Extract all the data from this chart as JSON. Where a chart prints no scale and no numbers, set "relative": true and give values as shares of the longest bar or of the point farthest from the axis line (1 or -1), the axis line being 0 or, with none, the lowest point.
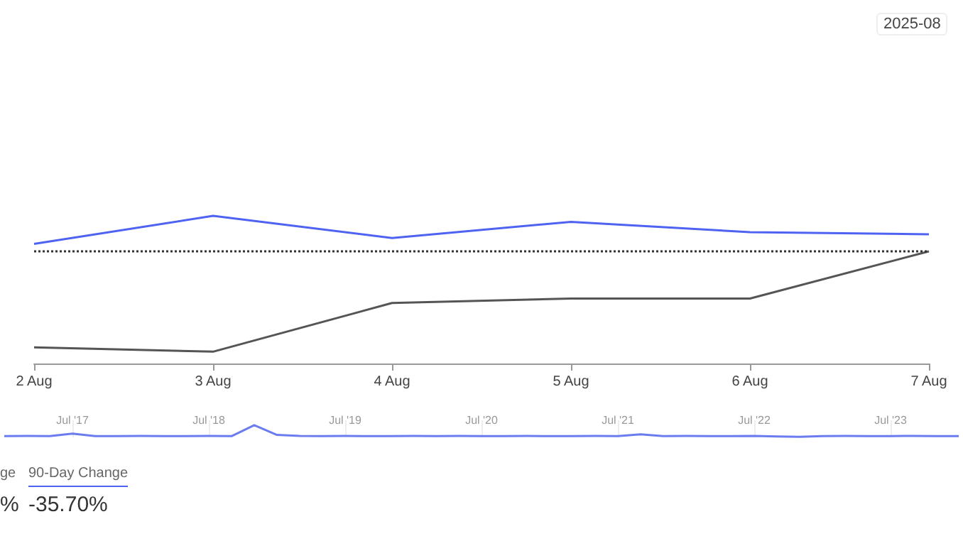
{
  "chart_data": [
    {
      "type": "line",
      "relative": true,
      "categories": [
        "2 Aug",
        "3 Aug",
        "4 Aug",
        "5 Aug",
        "6 Aug",
        "7 Aug"
      ],
      "series": [
        {
          "color": "#4f63f3",
          "values": [
            0.81,
            1.0,
            0.85,
            0.96,
            0.89,
            0.875
          ]
        },
        {
          "color": "#555555",
          "values": [
            0.11,
            0.08,
            0.41,
            0.44,
            0.44,
            0.76
          ]
        }
      ],
      "ref_lines": [
        {
          "axis": "y",
          "value": 0.76,
          "color": "#333333",
          "line_style": "dotted"
        }
      ],
      "marker": "none",
      "annotations": [
        "2025-08",
        "ge",
        "%",
        "90-Day Change",
        "-35.70%"
      ]
    },
    {
      "type": "line",
      "relative": true,
      "tick_labels": "x",
      "categories": [
        null,
        null,
        null,
        "Jul '17",
        null,
        null,
        null,
        null,
        null,
        "Jul '18",
        null,
        null,
        null,
        null,
        null,
        "Jul '19",
        null,
        null,
        null,
        null,
        null,
        "Jul '20",
        null,
        null,
        null,
        null,
        null,
        "Jul '21",
        null,
        null,
        null,
        null,
        null,
        "Jul '22",
        null,
        null,
        null,
        null,
        null,
        "Jul '23",
        null,
        null,
        null
      ],
      "series": [
        {
          "color": "#6b7cf0",
          "values": [
            0.1,
            0.12,
            0.1,
            0.3,
            0.1,
            0.1,
            0.12,
            0.1,
            0.1,
            0.12,
            0.1,
            1.0,
            0.2,
            0.12,
            0.1,
            0.12,
            0.1,
            0.1,
            0.12,
            0.1,
            0.12,
            0.1,
            0.1,
            0.12,
            0.1,
            0.1,
            0.12,
            0.1,
            0.25,
            0.1,
            0.12,
            0.1,
            0.1,
            0.12,
            0.08,
            0.05,
            0.1,
            0.12,
            0.1,
            0.1,
            0.12,
            0.1,
            0.1
          ]
        }
      ],
      "grid": "x",
      "marker": "none"
    }
  ]
}
